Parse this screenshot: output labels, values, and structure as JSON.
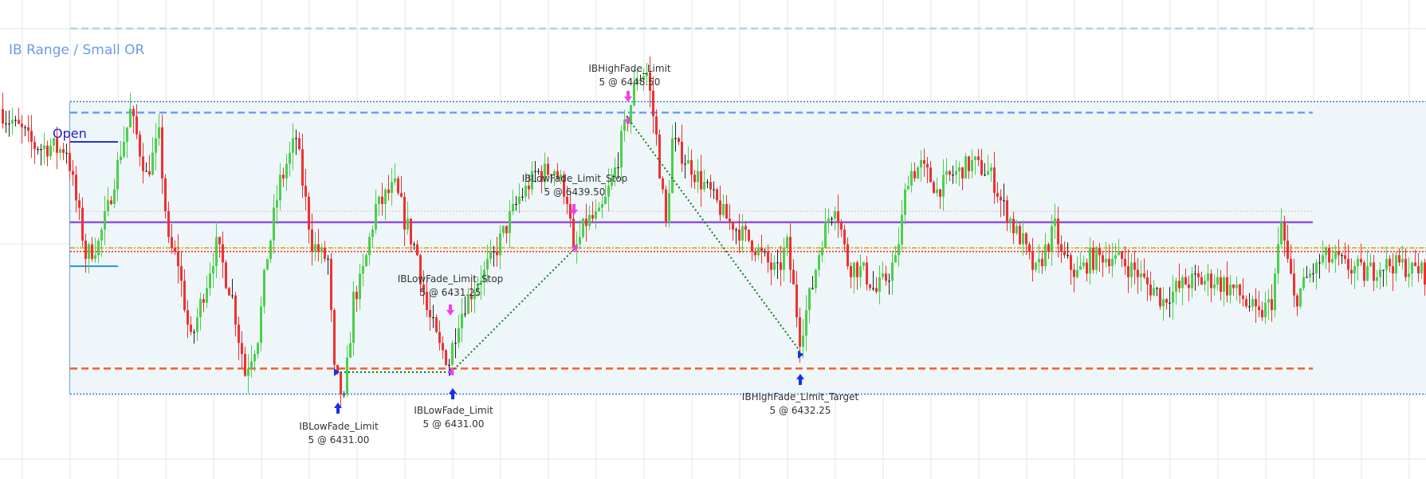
{
  "chart_data": {
    "type": "candlestick",
    "title": "IB Range / Small OR",
    "grid": true,
    "ylim": [
      6428.0,
      6456.5
    ],
    "colors": {
      "up": "#4ccf4c",
      "down": "#f03030",
      "doji": "#222222",
      "ib_fill": "#eef6fa"
    },
    "price_path": [
      [
        0,
        6449.0
      ],
      [
        11,
        6446.5
      ],
      [
        21,
        6446.25
      ],
      [
        23,
        6444.0
      ],
      [
        27,
        6439.0
      ],
      [
        31,
        6439.75
      ],
      [
        34,
        6442.25
      ],
      [
        37,
        6445.25
      ],
      [
        41,
        6448.75
      ],
      [
        46,
        6444.5
      ],
      [
        50,
        6447.0
      ],
      [
        53,
        6439.75
      ],
      [
        56,
        6438.5
      ],
      [
        60,
        6433.0
      ],
      [
        64,
        6436.5
      ],
      [
        68,
        6439.75
      ],
      [
        73,
        6436.0
      ],
      [
        77,
        6431.0
      ],
      [
        81,
        6433.5
      ],
      [
        84,
        6439.0
      ],
      [
        88,
        6444.0
      ],
      [
        93,
        6447.0
      ],
      [
        95,
        6444.0
      ],
      [
        98,
        6439.75
      ],
      [
        103,
        6438.5
      ],
      [
        105,
        6431.0
      ],
      [
        108,
        6429.0
      ],
      [
        111,
        6436.0
      ],
      [
        114,
        6437.75
      ],
      [
        118,
        6442.25
      ],
      [
        124,
        6443.75
      ],
      [
        127,
        6441.5
      ],
      [
        131,
        6439.0
      ],
      [
        134,
        6435.25
      ],
      [
        138,
        6432.75
      ],
      [
        141,
        6431.75
      ],
      [
        144,
        6434.75
      ],
      [
        148,
        6436.5
      ],
      [
        154,
        6438.5
      ],
      [
        158,
        6440.5
      ],
      [
        162,
        6442.5
      ],
      [
        168,
        6444.5
      ],
      [
        174,
        6445.0
      ],
      [
        178,
        6443.0
      ],
      [
        180,
        6439.0
      ],
      [
        184,
        6441.25
      ],
      [
        188,
        6441.5
      ],
      [
        192,
        6444.0
      ],
      [
        197,
        6448.5
      ],
      [
        200,
        6451.25
      ],
      [
        203,
        6451.5
      ],
      [
        206,
        6447.0
      ],
      [
        209,
        6441.0
      ],
      [
        211,
        6446.75
      ],
      [
        217,
        6445.0
      ],
      [
        222,
        6443.5
      ],
      [
        228,
        6441.5
      ],
      [
        234,
        6440.25
      ],
      [
        239,
        6439.0
      ],
      [
        244,
        6437.75
      ],
      [
        247,
        6439.75
      ],
      [
        251,
        6433.5
      ],
      [
        254,
        6436.0
      ],
      [
        258,
        6440.25
      ],
      [
        262,
        6442.75
      ],
      [
        266,
        6438.5
      ],
      [
        271,
        6437.75
      ],
      [
        275,
        6436.5
      ],
      [
        281,
        6438.5
      ],
      [
        285,
        6444.5
      ],
      [
        289,
        6445.0
      ],
      [
        294,
        6443.5
      ],
      [
        299,
        6444.5
      ],
      [
        305,
        6445.25
      ],
      [
        311,
        6444.5
      ],
      [
        315,
        6442.25
      ],
      [
        321,
        6439.75
      ],
      [
        325,
        6437.75
      ],
      [
        331,
        6441.0
      ],
      [
        333,
        6439.0
      ],
      [
        338,
        6437.75
      ],
      [
        342,
        6438.75
      ],
      [
        348,
        6439.0
      ],
      [
        353,
        6438.5
      ],
      [
        359,
        6437.25
      ],
      [
        365,
        6436.0
      ],
      [
        371,
        6437.0
      ],
      [
        376,
        6437.25
      ],
      [
        382,
        6437.25
      ],
      [
        388,
        6436.5
      ],
      [
        395,
        6434.75
      ],
      [
        399,
        6436.0
      ],
      [
        402,
        6441.0
      ],
      [
        406,
        6436.0
      ],
      [
        410,
        6437.25
      ],
      [
        415,
        6438.75
      ],
      [
        420,
        6438.5
      ],
      [
        428,
        6437.75
      ],
      [
        436,
        6438.5
      ],
      [
        447,
        6437.75
      ]
    ],
    "levels": [
      {
        "price": 6454.5,
        "color": "#a8d8e6",
        "style": "dashed",
        "extends": false
      },
      {
        "price": 6449.5,
        "color": "#3a80c0",
        "style": "dotted",
        "extends": true
      },
      {
        "price": 6448.75,
        "color": "#6fa0ee",
        "style": "dashed",
        "extends": false
      },
      {
        "price": 6442.0,
        "color": "#f2c8d8",
        "style": "dotted",
        "extends": false
      },
      {
        "price": 6441.25,
        "color": "#9050d8",
        "style": "solid",
        "extends": false
      },
      {
        "price": 6439.5,
        "color": "#e0a000",
        "style": "dashdot",
        "extends": true
      },
      {
        "price": 6439.25,
        "color": "#ff2020",
        "style": "dotted",
        "extends": true
      },
      {
        "price": 6431.25,
        "color": "#f06030",
        "style": "dashed",
        "extends": false
      },
      {
        "price": 6429.5,
        "color": "#3a80c0",
        "style": "dotted",
        "extends": true
      }
    ],
    "open_label": "Open",
    "annotations": [
      {
        "name": "IBHighFade_Limit",
        "detail": "5 @ 6448.50",
        "bar": 197,
        "side": "sell"
      },
      {
        "name": "IBLowFade_Limit_Stop",
        "detail": "5 @ 6439.50",
        "bar": 180,
        "side": "sell"
      },
      {
        "name": "IBLowFade_Limit_Stop",
        "detail": "5 @ 6431.25",
        "bar": 141,
        "side": "sell"
      },
      {
        "name": "IBLowFade_Limit",
        "detail": "5 @ 6431.00",
        "bar": 106,
        "side": "buy"
      },
      {
        "name": "IBLowFade_Limit",
        "detail": "5 @ 6431.00",
        "bar": 142,
        "side": "buy"
      },
      {
        "name": "IBHighFade_Limit_Target",
        "detail": "5 @ 6432.25",
        "bar": 251,
        "side": "buy"
      }
    ],
    "trades": [
      {
        "entry_bar": 105,
        "entry": 6431.0,
        "exit_bar": 141,
        "exit": 6431.0
      },
      {
        "entry_bar": 141,
        "entry": 6431.0,
        "exit_bar": 180,
        "exit": 6439.5
      },
      {
        "entry_bar": 196,
        "entry": 6448.5,
        "exit_bar": 251,
        "exit": 6432.25
      }
    ]
  }
}
